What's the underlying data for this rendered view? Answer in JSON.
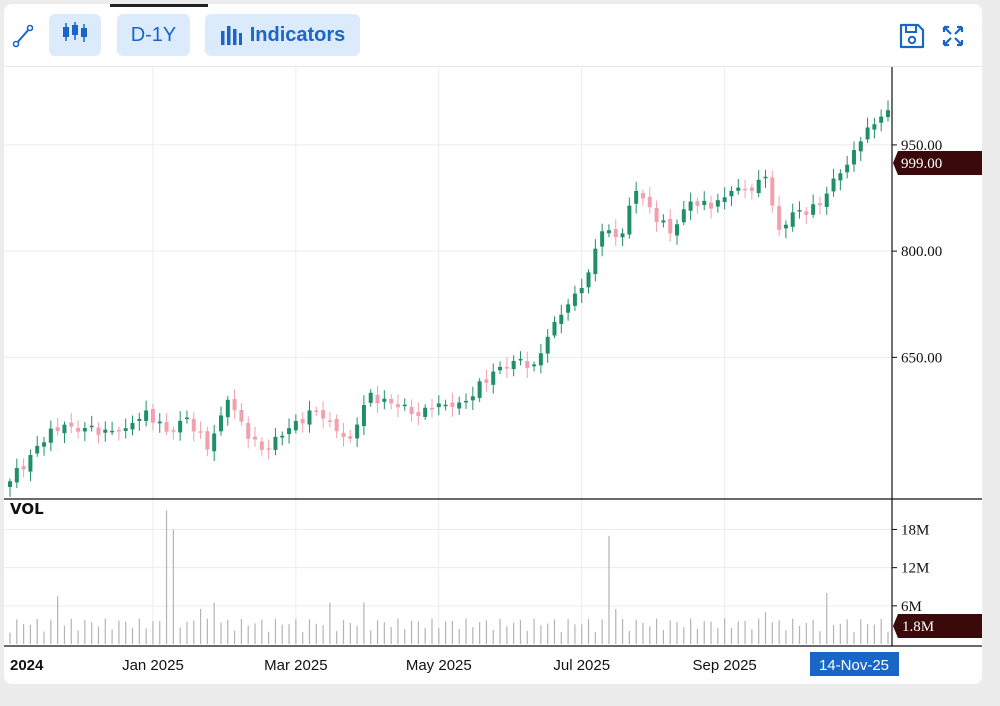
{
  "toolbar": {
    "range_label": "D-1Y",
    "indicators_label": "Indicators"
  },
  "colors": {
    "up": "#1f8f6a",
    "down": "#f2a0ad",
    "accent": "#1a66c7",
    "price_tag_bg": "#3a0a0a",
    "date_tag_bg": "#1a66c7"
  },
  "icons": [
    "line-draw-icon",
    "candlestick-icon",
    "bar-chart-icon",
    "save-icon",
    "fullscreen-icon"
  ],
  "chart_data": {
    "type": "candlestick",
    "price_axis": {
      "ylim": [
        450,
        1060
      ],
      "ticks": [
        650,
        800,
        950
      ],
      "tick_labels": [
        "650.00",
        "800.00",
        "950.00"
      ],
      "last_price_label": "999.00",
      "last_price": 999
    },
    "volume_panel": {
      "title": "VOL",
      "ylim": [
        0,
        22000000
      ],
      "ticks": [
        6000000,
        12000000,
        18000000
      ],
      "tick_labels": [
        "6M",
        "12M",
        "18M"
      ],
      "last_volume_label": "1.8M",
      "last_volume": 1800000
    },
    "x_axis": {
      "labels": [
        "2024",
        "Jan 2025",
        "Mar 2025",
        "May 2025",
        "Jul 2025",
        "Sep 2025"
      ],
      "label_index": [
        0,
        21,
        42,
        63,
        84,
        105
      ],
      "current_date_label": "14-Nov-25",
      "count": 130
    },
    "close_anchors": [
      {
        "i": 0,
        "v": 475
      },
      {
        "i": 4,
        "v": 525
      },
      {
        "i": 8,
        "v": 555
      },
      {
        "i": 10,
        "v": 545
      },
      {
        "i": 14,
        "v": 548
      },
      {
        "i": 17,
        "v": 550
      },
      {
        "i": 20,
        "v": 575
      },
      {
        "i": 23,
        "v": 545
      },
      {
        "i": 26,
        "v": 565
      },
      {
        "i": 29,
        "v": 520
      },
      {
        "i": 32,
        "v": 590
      },
      {
        "i": 35,
        "v": 535
      },
      {
        "i": 38,
        "v": 520
      },
      {
        "i": 41,
        "v": 550
      },
      {
        "i": 44,
        "v": 575
      },
      {
        "i": 47,
        "v": 560
      },
      {
        "i": 50,
        "v": 535
      },
      {
        "i": 53,
        "v": 600
      },
      {
        "i": 56,
        "v": 585
      },
      {
        "i": 59,
        "v": 570
      },
      {
        "i": 62,
        "v": 578
      },
      {
        "i": 65,
        "v": 580
      },
      {
        "i": 68,
        "v": 595
      },
      {
        "i": 71,
        "v": 630
      },
      {
        "i": 74,
        "v": 645
      },
      {
        "i": 77,
        "v": 640
      },
      {
        "i": 80,
        "v": 700
      },
      {
        "i": 83,
        "v": 740
      },
      {
        "i": 85,
        "v": 770
      },
      {
        "i": 87,
        "v": 828
      },
      {
        "i": 90,
        "v": 825
      },
      {
        "i": 92,
        "v": 885
      },
      {
        "i": 94,
        "v": 862
      },
      {
        "i": 97,
        "v": 825
      },
      {
        "i": 100,
        "v": 870
      },
      {
        "i": 103,
        "v": 860
      },
      {
        "i": 106,
        "v": 885
      },
      {
        "i": 109,
        "v": 885
      },
      {
        "i": 111,
        "v": 905
      },
      {
        "i": 113,
        "v": 830
      },
      {
        "i": 116,
        "v": 858
      },
      {
        "i": 119,
        "v": 865
      },
      {
        "i": 122,
        "v": 910
      },
      {
        "i": 125,
        "v": 955
      },
      {
        "i": 128,
        "v": 990
      },
      {
        "i": 129,
        "v": 999
      }
    ],
    "volume_spikes": [
      {
        "i": 7,
        "v": 7500000
      },
      {
        "i": 23,
        "v": 21000000
      },
      {
        "i": 24,
        "v": 18000000
      },
      {
        "i": 28,
        "v": 5500000
      },
      {
        "i": 30,
        "v": 6500000
      },
      {
        "i": 47,
        "v": 6500000
      },
      {
        "i": 52,
        "v": 6500000
      },
      {
        "i": 88,
        "v": 17000000
      },
      {
        "i": 89,
        "v": 5500000
      },
      {
        "i": 111,
        "v": 5000000
      },
      {
        "i": 120,
        "v": 8000000
      }
    ],
    "base_volume": 1800000
  }
}
